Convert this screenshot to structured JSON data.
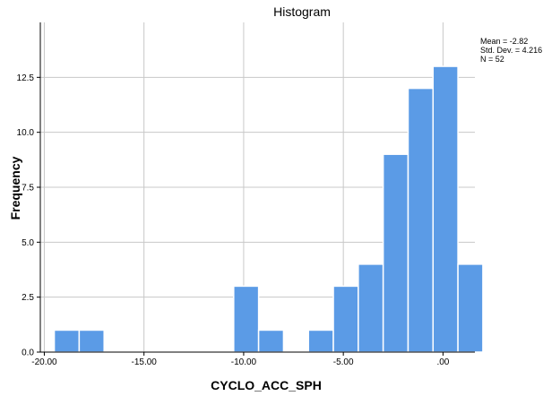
{
  "chart_data": {
    "type": "bar",
    "title": "Histogram",
    "xlabel": "CYCLO_ACC_SPH",
    "ylabel": "Frequency",
    "xlim": [
      -20.2,
      1.6
    ],
    "ylim": [
      0,
      15
    ],
    "bin_width": 1.25,
    "x_tick_values": [
      -20,
      -15,
      -10,
      -5,
      0
    ],
    "x_tick_labels": [
      "-20.00",
      "-15.00",
      "-10.00",
      "-5.00",
      ".00"
    ],
    "y_ticks": [
      0.0,
      2.5,
      5.0,
      7.5,
      10.0,
      12.5
    ],
    "y_tick_labels": [
      "0.0",
      "2.5",
      "5.0",
      "7.5",
      "10.0",
      "12.5"
    ],
    "grid": true,
    "bins": [
      {
        "start": -19.5,
        "end": -18.25,
        "count": 1
      },
      {
        "start": -18.25,
        "end": -17.0,
        "count": 1
      },
      {
        "start": -10.5,
        "end": -9.25,
        "count": 3
      },
      {
        "start": -9.25,
        "end": -8.0,
        "count": 1
      },
      {
        "start": -6.75,
        "end": -5.5,
        "count": 1
      },
      {
        "start": -5.5,
        "end": -4.25,
        "count": 3
      },
      {
        "start": -4.25,
        "end": -3.0,
        "count": 4
      },
      {
        "start": -3.0,
        "end": -1.75,
        "count": 9
      },
      {
        "start": -1.75,
        "end": -0.5,
        "count": 12
      },
      {
        "start": -0.5,
        "end": 0.75,
        "count": 13
      },
      {
        "start": 0.75,
        "end": 2.0,
        "count": 4
      }
    ],
    "stats": {
      "mean": "Mean = -2.82",
      "std_dev": "Std. Dev. = 4.216",
      "n": "N = 52"
    },
    "colors": {
      "bar_fill": "#5B9BE6",
      "bar_stroke": "#ffffff",
      "grid": "#c8c8c8",
      "axis": "#000000"
    }
  }
}
